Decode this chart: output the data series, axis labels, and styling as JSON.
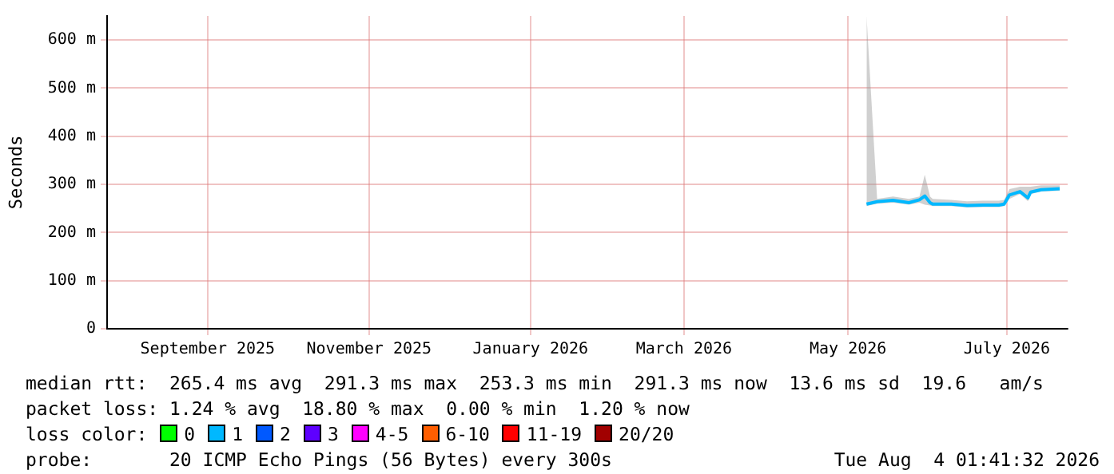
{
  "chart_data": {
    "type": "line",
    "ylabel": "Seconds",
    "x": [
      "2026-05-20",
      "2026-05-24",
      "2026-05-30",
      "2026-06-05",
      "2026-06-09",
      "2026-06-11",
      "2026-06-13",
      "2026-06-14",
      "2026-06-21",
      "2026-06-27",
      "2026-07-03",
      "2026-07-09",
      "2026-07-11",
      "2026-07-13",
      "2026-07-17",
      "2026-07-20",
      "2026-07-21",
      "2026-07-25",
      "2026-08-01"
    ],
    "series": [
      {
        "color": "#00b8ff",
        "values": [
          259,
          264,
          267,
          262,
          268,
          276,
          262,
          259,
          259,
          256,
          257,
          257,
          259,
          278,
          285,
          272,
          284,
          289,
          291
        ],
        "lower": [
          255,
          260,
          262,
          258,
          262,
          258,
          256,
          255,
          255,
          252,
          253,
          253,
          255,
          270,
          280,
          265,
          280,
          285,
          287
        ],
        "upper": [
          650,
          270,
          275,
          270,
          275,
          320,
          275,
          270,
          268,
          265,
          266,
          266,
          268,
          290,
          295,
          295,
          295,
          298,
          298
        ]
      }
    ],
    "xlim": [
      "2025-08-06",
      "2026-08-04"
    ],
    "xticks": [
      {
        "value": "2025-09-13",
        "label": "September 2025"
      },
      {
        "value": "2025-11-13",
        "label": "November 2025"
      },
      {
        "value": "2026-01-13",
        "label": "January 2026"
      },
      {
        "value": "2026-03-12",
        "label": "March 2026"
      },
      {
        "value": "2026-05-13",
        "label": "May 2026"
      },
      {
        "value": "2026-07-12",
        "label": "July 2026"
      }
    ],
    "ylim": [
      0,
      650
    ],
    "yticks": [
      0,
      {
        "value": 100,
        "label": "100 m"
      },
      {
        "value": 200,
        "label": "200 m"
      },
      {
        "value": 300,
        "label": "300 m"
      },
      {
        "value": 400,
        "label": "400 m"
      },
      {
        "value": 500,
        "label": "500 m"
      },
      {
        "value": 600,
        "label": "600 m"
      }
    ],
    "grid": true,
    "legend": false,
    "marker": "none",
    "line_style": "solid",
    "annotations": [
      "median rtt:  265.4 ms avg  291.3 ms max  253.3 ms min  291.3 ms now  13.6 ms sd  19.6   am/s",
      "packet loss: 1.24 % avg  18.80 % max  0.00 % min  1.20 % now",
      "loss color:",
      "0",
      "1",
      "2",
      "3",
      "4-5",
      "6-10",
      "11-19",
      "20/20",
      "probe:       20 ICMP Echo Pings (56 Bytes) every 300s",
      "Tue Aug  4 01:41:32 2026"
    ]
  }
}
